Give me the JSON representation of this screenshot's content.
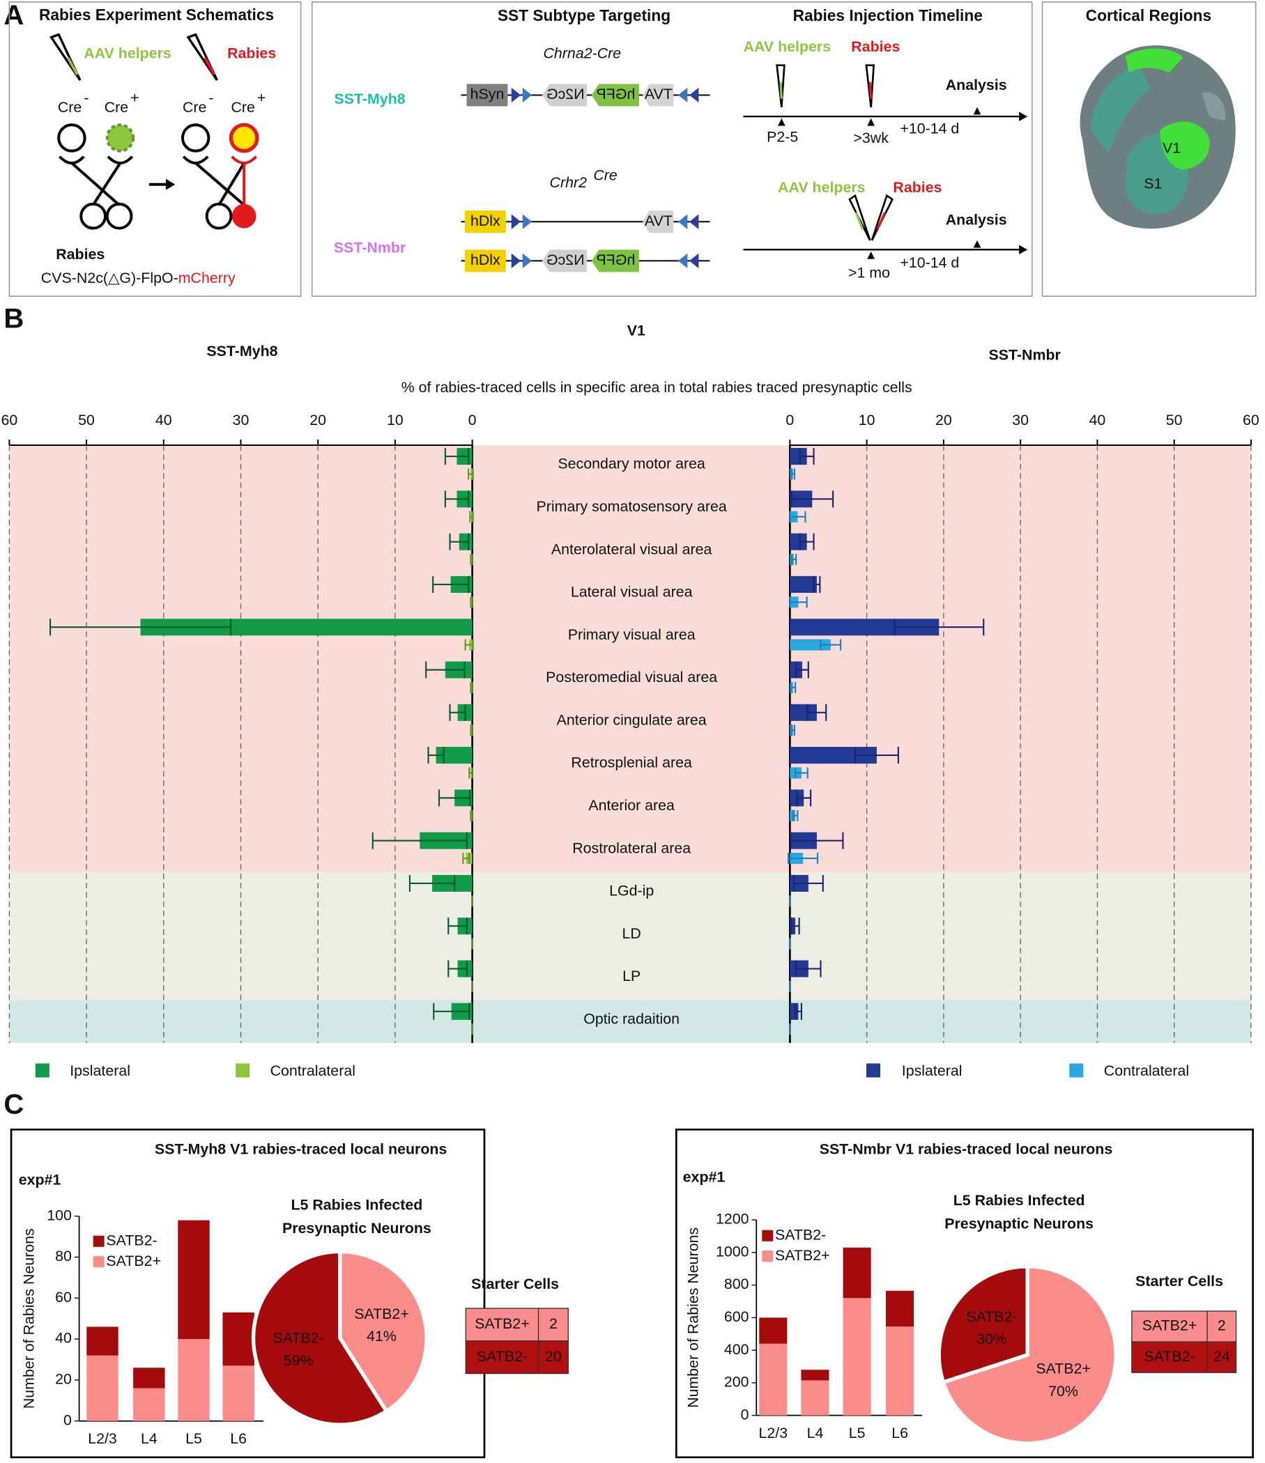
{
  "panel_labels": [
    "A",
    "B",
    "C"
  ],
  "panel_a": {
    "schematics": {
      "title": "Rabies Experiment Schematics",
      "aav": "AAV helpers",
      "rabies": "Rabies",
      "cre": [
        "Cre",
        "Cre",
        "Cre",
        "Cre"
      ],
      "cre_sup": [
        "-",
        "+",
        "-",
        "+"
      ],
      "virus": "Rabies",
      "construct": "CVS-N2c(△G)-FlpO-",
      "construct_reporter": "mCherry"
    },
    "targeting": {
      "title": "SST Subtype Targeting",
      "lines": [
        "SST-Myh8",
        "SST-Nmbr"
      ],
      "drivers": [
        "Chrna2-Cre",
        "Crhr2"
      ],
      "driver_sup": "Cre",
      "rows": [
        [
          "hSyn",
          "N2cG",
          "hGFP",
          "TVA"
        ],
        [
          "hDlx",
          "TVA"
        ],
        [
          "hDlx",
          "N2cG",
          "hGFP"
        ]
      ]
    },
    "timeline": {
      "title": "Rabies Injection Timeline",
      "rows": [
        {
          "aav": "AAV helpers",
          "rabies": "Rabies",
          "analysis": "Analysis",
          "times": [
            "P2-5",
            ">3wk",
            "+10-14 d"
          ]
        },
        {
          "aav": "AAV helpers",
          "rabies": "Rabies",
          "analysis": "Analysis",
          "times": [
            ">1 mo",
            "+10-14 d"
          ]
        }
      ]
    },
    "regions": {
      "title": "Cortical Regions",
      "areas": [
        "V1",
        "S1"
      ]
    }
  },
  "chart_data": [
    {
      "type": "butterfly",
      "title": "V1",
      "xlabel": "% of rabies-traced cells in specific area in total rabies traced presynaptic cells",
      "categories": [
        "Secondary motor area",
        "Primary somatosensory area",
        "Anterolateral visual area",
        "Lateral visual area",
        "Primary visual area",
        "Posteromedial visual area",
        "Anterior cingulate area",
        "Retrosplenial area",
        "Anterior area",
        "Rostrolateral area",
        "LGd-ip",
        "LD",
        "LP",
        "Optic radaition"
      ],
      "xlim": [
        0,
        60
      ],
      "xticks": [
        0,
        10,
        20,
        30,
        40,
        50,
        60
      ],
      "grid": true,
      "groups": [
        {
          "name": "SST-Myh8",
          "color": "#1dbf9e",
          "series": [
            {
              "name": "Ipslateral",
              "color": "#0f9b48",
              "error_color": "#0b5a2b",
              "values": [
                2.0,
                2.0,
                1.7,
                2.8,
                43.0,
                3.5,
                1.9,
                4.7,
                2.3,
                6.8,
                5.2,
                1.9,
                1.9,
                2.7
              ],
              "errors": [
                1.5,
                1.5,
                1.2,
                2.3,
                11.7,
                2.5,
                1.0,
                1.0,
                2.0,
                6.1,
                2.9,
                1.2,
                1.2,
                2.3
              ]
            },
            {
              "name": "Contralateral",
              "color": "#8cc63e",
              "error_color": "#5e9a2a",
              "values": [
                0.2,
                0.1,
                0.1,
                0.1,
                0.4,
                0.1,
                0.1,
                0.2,
                0.1,
                0.8,
                0,
                0,
                0,
                0
              ],
              "errors": [
                0.3,
                0.2,
                0.1,
                0.1,
                0.5,
                0.1,
                0.1,
                0.2,
                0.1,
                0.4,
                0,
                0,
                0,
                0
              ]
            }
          ]
        },
        {
          "name": "SST-Nmbr",
          "color": "#d96ff2",
          "series": [
            {
              "name": "Ipslateral",
              "color": "#233a94",
              "error_color": "#1a2470",
              "values": [
                2.2,
                2.9,
                2.2,
                3.5,
                19.4,
                1.6,
                3.5,
                11.3,
                1.8,
                3.5,
                2.4,
                0.7,
                2.4,
                1.1
              ],
              "errors": [
                0.9,
                2.7,
                0.9,
                0.4,
                5.8,
                0.8,
                1.2,
                2.8,
                0.9,
                3.4,
                1.9,
                0.5,
                1.6,
                0.4
              ]
            },
            {
              "name": "Contralateral",
              "color": "#29a8e0",
              "error_color": "#1b7fc0",
              "values": [
                0.4,
                1.0,
                0.5,
                1.1,
                5.3,
                0.4,
                0.4,
                1.5,
                0.7,
                1.7,
                0,
                0,
                0,
                0
              ],
              "errors": [
                0.2,
                1.0,
                0.3,
                1.1,
                1.3,
                0.3,
                0.2,
                0.8,
                0.3,
                1.9,
                0,
                0,
                0,
                0
              ]
            }
          ]
        }
      ]
    },
    {
      "type": "bar",
      "stacked": true,
      "ylabel": "Number of Rabies Neurons",
      "categories": [
        "L2/3",
        "L4",
        "L5",
        "L6"
      ],
      "ylim": [
        0,
        100
      ],
      "yticks": [
        0,
        20,
        40,
        60,
        80,
        100
      ],
      "series": [
        {
          "name": "SATB2+",
          "color": "#fa8c8a",
          "values": [
            32,
            16,
            40,
            27
          ]
        },
        {
          "name": "SATB2-",
          "color": "#a60b0b",
          "values": [
            14,
            10,
            58,
            26
          ]
        }
      ]
    },
    {
      "type": "pie",
      "title": [
        "L5 Rabies Infected",
        "Presynaptic Neurons"
      ],
      "categories": [
        "SATB2+",
        "SATB2-"
      ],
      "values": [
        41,
        59
      ],
      "value_labels": [
        "41%",
        "59%"
      ],
      "colors": [
        "#fa8c8a",
        "#a60b0b"
      ]
    },
    {
      "type": "bar",
      "stacked": true,
      "ylabel": "Number of Rabies Neurons",
      "categories": [
        "L2/3",
        "L4",
        "L5",
        "L6"
      ],
      "ylim": [
        0,
        1200
      ],
      "yticks": [
        0,
        200,
        400,
        600,
        800,
        1000,
        1200
      ],
      "series": [
        {
          "name": "SATB2+",
          "color": "#fa8c8a",
          "values": [
            440,
            215,
            720,
            545
          ]
        },
        {
          "name": "SATB2-",
          "color": "#a60b0b",
          "values": [
            160,
            65,
            310,
            220
          ]
        }
      ]
    },
    {
      "type": "pie",
      "title": [
        "L5 Rabies Infected",
        "Presynaptic Neurons"
      ],
      "categories": [
        "SATB2+",
        "SATB2-"
      ],
      "values": [
        70,
        30
      ],
      "value_labels": [
        "70%",
        "30%"
      ],
      "colors": [
        "#fa8c8a",
        "#a60b0b"
      ]
    }
  ],
  "panel_c": {
    "boxes": [
      {
        "title": "SST-Myh8 V1 rabies-traced local neurons",
        "exp": "exp#1",
        "starter": {
          "title": "Starter Cells",
          "rows": [
            [
              "SATB2+",
              2
            ],
            [
              "SATB2-",
              20
            ]
          ]
        }
      },
      {
        "title": "SST-Nmbr V1 rabies-traced local neurons",
        "exp": "exp#1",
        "starter": {
          "title": "Starter Cells",
          "rows": [
            [
              "SATB2+",
              2
            ],
            [
              "SATB2-",
              24
            ]
          ]
        }
      }
    ]
  }
}
